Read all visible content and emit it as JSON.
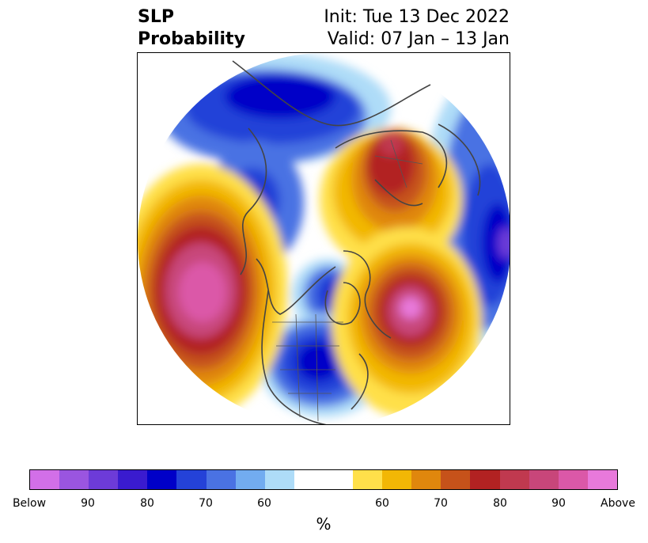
{
  "title": {
    "left_line1": "SLP",
    "left_line2": "Probability",
    "right_line1": "Init: Tue 13 Dec 2022",
    "right_line2": "Valid: 07 Jan – 13 Jan"
  },
  "colorbar": {
    "unit": "%",
    "segments": [
      {
        "color": "#d26fe8",
        "category": "below"
      },
      {
        "color": "#9a55e0",
        "category": "below"
      },
      {
        "color": "#6d3bd8",
        "category": "below"
      },
      {
        "color": "#3a1bcf",
        "category": "below"
      },
      {
        "color": "#0000c8",
        "category": "below"
      },
      {
        "color": "#2442d8",
        "category": "below"
      },
      {
        "color": "#4a72e3",
        "category": "below"
      },
      {
        "color": "#72acf0",
        "category": "below"
      },
      {
        "color": "#aedcf8",
        "category": "below"
      },
      {
        "color": "#ffffff",
        "category": "neutral",
        "wide": true
      },
      {
        "color": "#ffe04a",
        "category": "above"
      },
      {
        "color": "#f2b705",
        "category": "above"
      },
      {
        "color": "#e0870d",
        "category": "above"
      },
      {
        "color": "#c6521a",
        "category": "above"
      },
      {
        "color": "#b22222",
        "category": "above"
      },
      {
        "color": "#c0394f",
        "category": "above"
      },
      {
        "color": "#c8467a",
        "category": "above"
      },
      {
        "color": "#db58a8",
        "category": "above"
      },
      {
        "color": "#e879db",
        "category": "above"
      }
    ],
    "tick_labels": [
      "Below",
      "90",
      "80",
      "70",
      "60",
      "60",
      "70",
      "80",
      "90",
      "Above"
    ]
  },
  "map": {
    "projection": "north polar stereographic",
    "features": [
      {
        "name": "arctic-high-anomaly",
        "sign": "above",
        "peak_color": "#c8467a"
      },
      {
        "name": "north-pacific-high-anomaly",
        "sign": "above",
        "peak_color": "#db58a8"
      },
      {
        "name": "north-atlantic-high-anomaly",
        "sign": "above",
        "peak_color": "#e879db"
      },
      {
        "name": "central-us-low-anomaly",
        "sign": "below",
        "peak_color": "#0000c8"
      },
      {
        "name": "hudson-bay-low-anomaly",
        "sign": "below",
        "peak_color": "#0000c8"
      },
      {
        "name": "bering-low-anomaly",
        "sign": "below",
        "peak_color": "#0000c8"
      },
      {
        "name": "siberia-low-anomaly",
        "sign": "below",
        "peak_color": "#0000c8"
      },
      {
        "name": "europe-low-anomaly",
        "sign": "below",
        "peak_color": "#6d3bd8"
      }
    ]
  }
}
